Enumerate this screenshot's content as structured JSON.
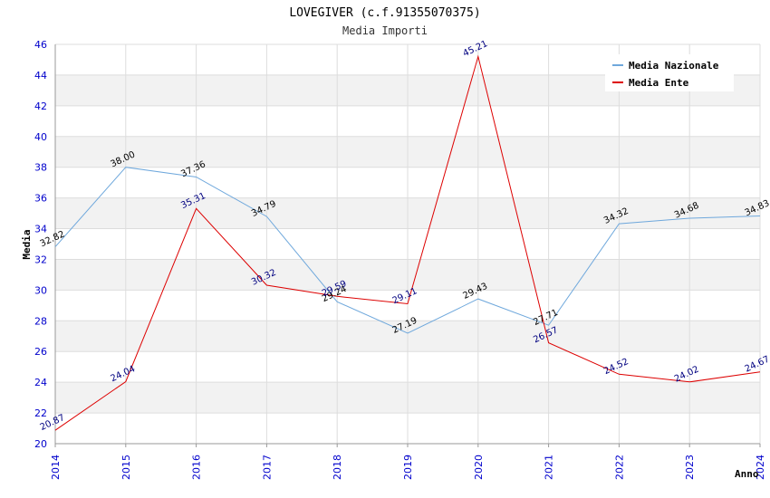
{
  "chart_data": {
    "type": "line",
    "title": "LOVEGIVER (c.f.91355070375)",
    "subtitle": "Media Importi",
    "xlabel": "Anno",
    "ylabel": "Media",
    "ylim": [
      20,
      46
    ],
    "yticks": [
      20,
      22,
      24,
      26,
      28,
      30,
      32,
      34,
      36,
      38,
      40,
      42,
      44,
      46
    ],
    "categories": [
      "2014",
      "2015",
      "2016",
      "2017",
      "2018",
      "2019",
      "2020",
      "2021",
      "2022",
      "2023",
      "2024"
    ],
    "series": [
      {
        "name": "Media Nazionale",
        "color": "#6fa8dc",
        "label_color": "#000000",
        "values": [
          32.82,
          38.0,
          37.36,
          34.79,
          29.24,
          27.19,
          29.43,
          27.71,
          34.32,
          34.68,
          34.83
        ],
        "labels": [
          "32.82",
          "38.00",
          "37.36",
          "34.79",
          "29.24",
          "27.19",
          "29.43",
          "27.71",
          "34.32",
          "34.68",
          "34.83"
        ]
      },
      {
        "name": "Media Ente",
        "color": "#dd0000",
        "label_color": "#000080",
        "values": [
          20.87,
          24.04,
          35.31,
          30.32,
          29.59,
          29.11,
          45.21,
          26.57,
          24.52,
          24.02,
          24.67
        ],
        "labels": [
          "20.87",
          "24.04",
          "35.31",
          "30.32",
          "29.59",
          "29.11",
          "45.21",
          "26.57",
          "24.52",
          "24.02",
          "24.67"
        ]
      }
    ],
    "grid": true,
    "legend_position": "top-right",
    "colors": {
      "band": "#f2f2f2",
      "gridline": "#dddddd",
      "axis": "#999999",
      "tick_text": "#0000cc"
    }
  }
}
